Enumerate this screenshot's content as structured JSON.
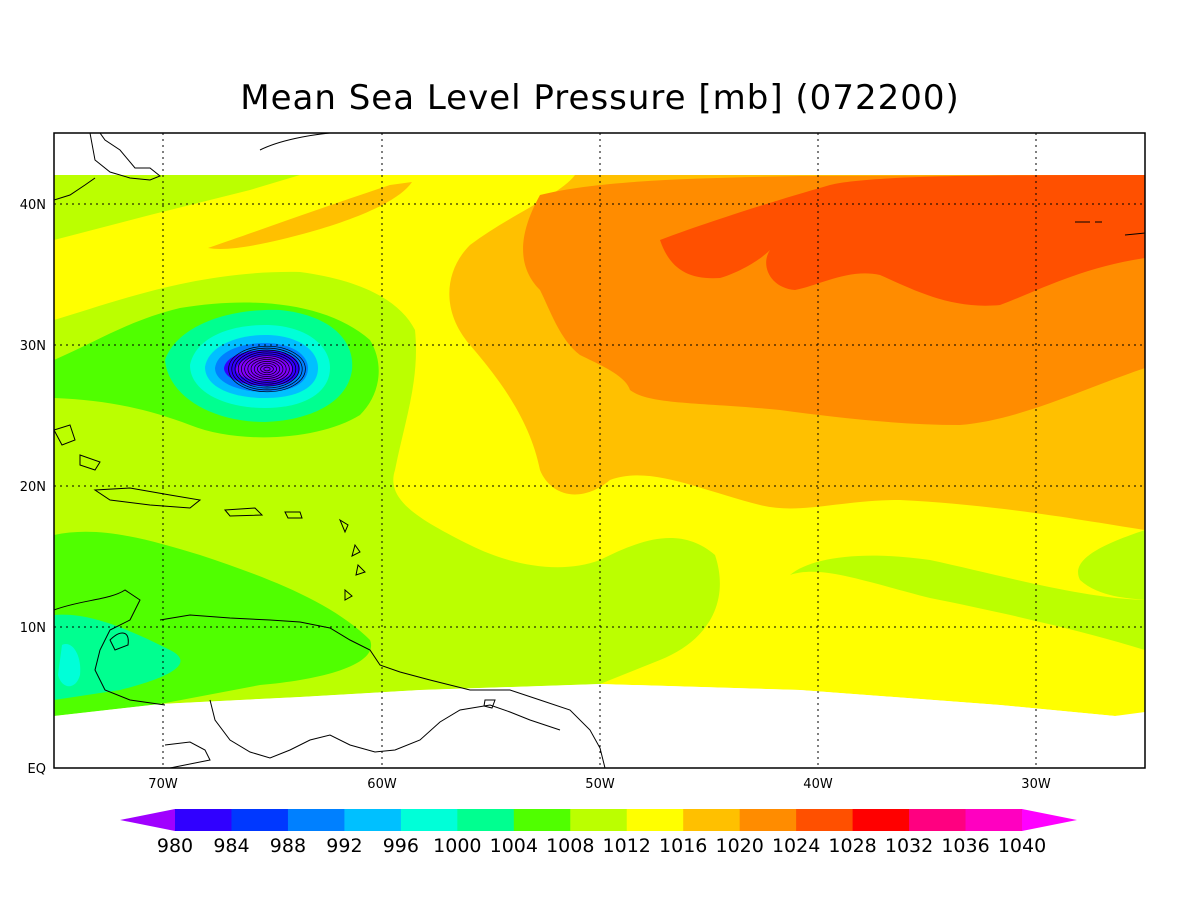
{
  "title": "Mean Sea Level Pressure [mb] (072200)",
  "map": {
    "lon_range": [
      -75,
      -25
    ],
    "lat_range": [
      0,
      45
    ],
    "data_lat_range": [
      4,
      42
    ],
    "lon_ticks": [
      {
        "lon": -70,
        "label": "70W"
      },
      {
        "lon": -60,
        "label": "60W"
      },
      {
        "lon": -50,
        "label": "50W"
      },
      {
        "lon": -40,
        "label": "40W"
      },
      {
        "lon": -30,
        "label": "30W"
      }
    ],
    "lat_ticks": [
      {
        "lat": 0,
        "label": "EQ"
      },
      {
        "lat": 10,
        "label": "10N"
      },
      {
        "lat": 20,
        "label": "20N"
      },
      {
        "lat": 30,
        "label": "30N"
      },
      {
        "lat": 40,
        "label": "40N"
      }
    ],
    "grid": "dotted",
    "low_center": {
      "lon": -65,
      "lat": 28.2,
      "min_mb": 980
    }
  },
  "colorbar": {
    "levels": [
      "980",
      "984",
      "988",
      "992",
      "996",
      "1000",
      "1004",
      "1008",
      "1012",
      "1016",
      "1020",
      "1024",
      "1028",
      "1032",
      "1036",
      "1040"
    ],
    "colors": [
      "#a000ff",
      "#3000ff",
      "#0038ff",
      "#0080ff",
      "#00c0ff",
      "#00ffd8",
      "#00ff90",
      "#50ff00",
      "#bbff00",
      "#ffff00",
      "#ffc000",
      "#ff8c00",
      "#ff5000",
      "#ff0000",
      "#ff0080",
      "#ff00c0",
      "#ff00ff"
    ]
  }
}
